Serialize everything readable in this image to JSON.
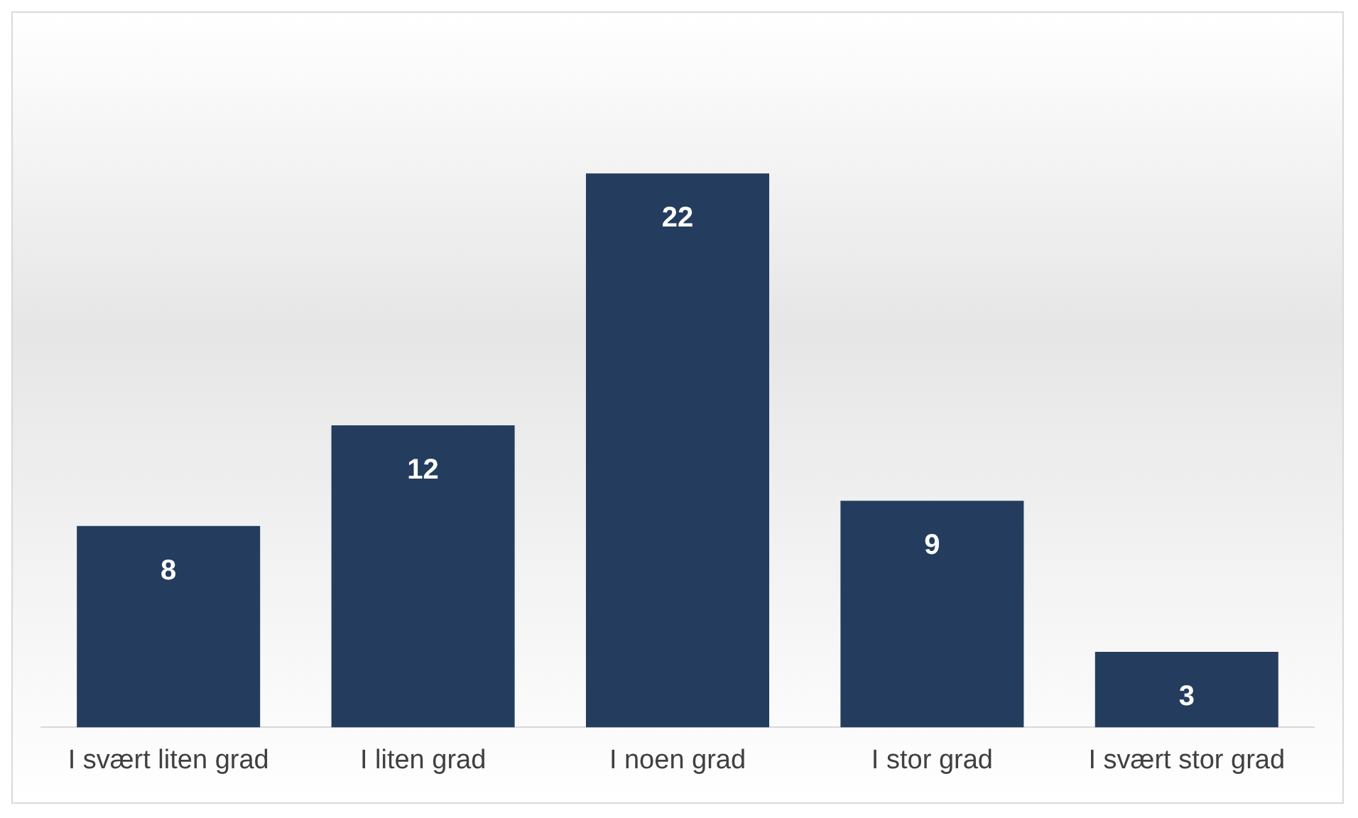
{
  "chart_data": {
    "type": "bar",
    "categories": [
      "I svært liten grad",
      "I liten grad",
      "I noen grad",
      "I stor grad",
      "I svært stor grad"
    ],
    "values": [
      8,
      12,
      22,
      9,
      3
    ],
    "color": "#243d5e",
    "data_labels": true,
    "grid": false,
    "legend": false
  }
}
